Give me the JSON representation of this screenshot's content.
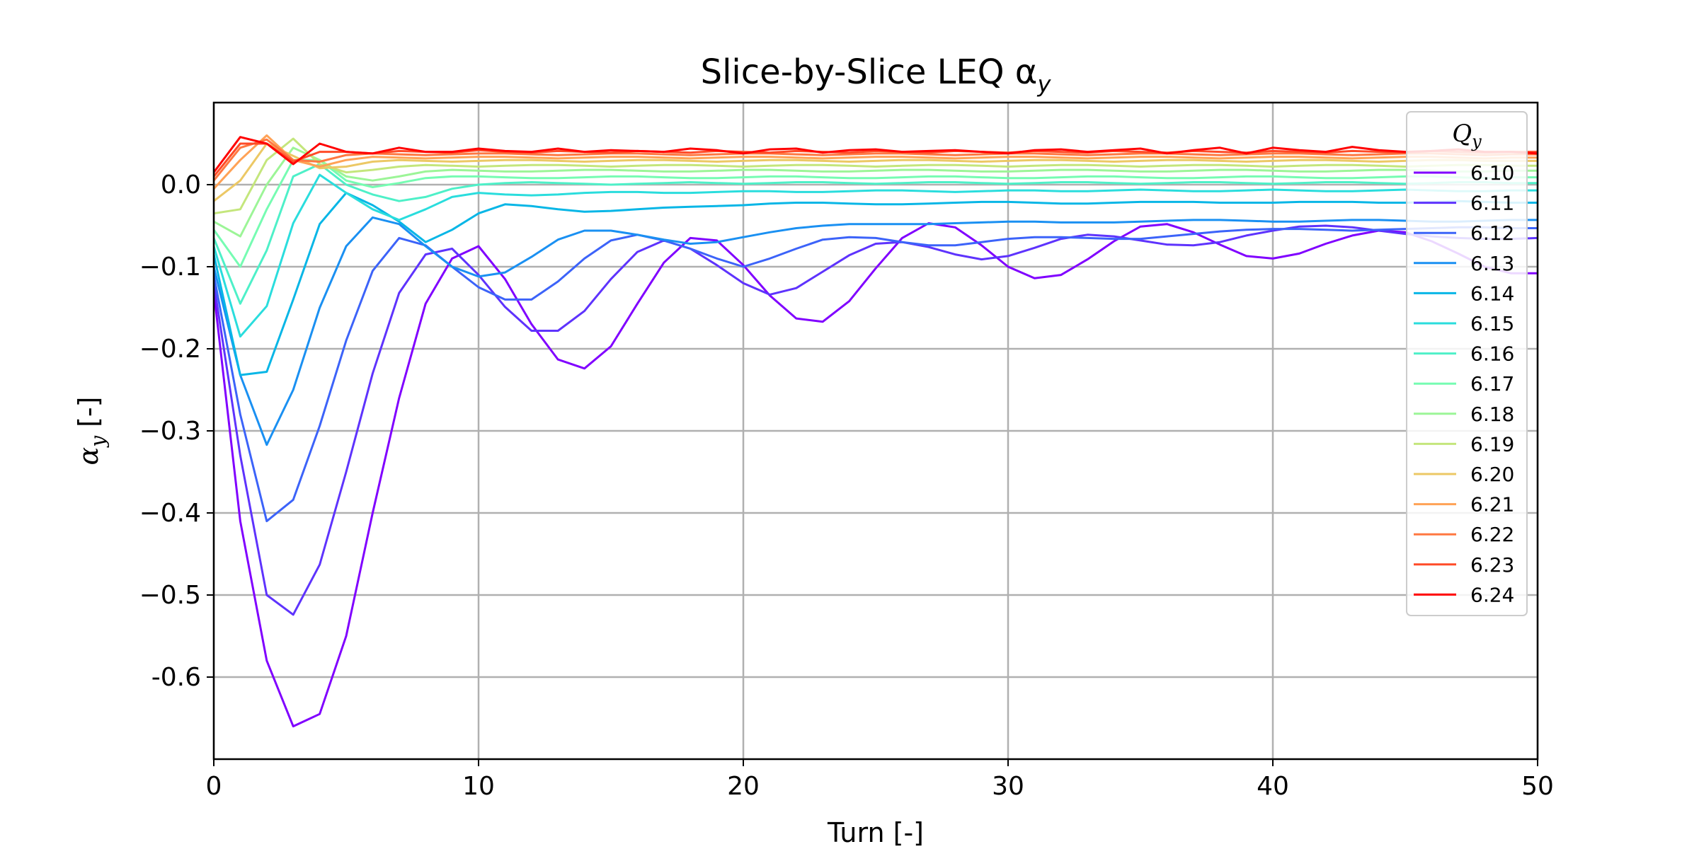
{
  "chart_data": {
    "type": "line",
    "title": "Slice-by-Slice LEQ α",
    "title_sub": "y",
    "xlabel": "Turn [-]",
    "ylabel": "α",
    "ylabel_sub": "y",
    "ylabel_suffix": " [-]",
    "xlim": [
      0,
      50
    ],
    "ylim": [
      -0.7,
      0.1
    ],
    "xticks": [
      0,
      10,
      20,
      30,
      40,
      50
    ],
    "yticks": [
      -0.6,
      -0.5,
      -0.4,
      -0.3,
      -0.2,
      -0.1,
      0.0
    ],
    "ytick_labels": [
      "-0.6",
      "−0.5",
      "−0.4",
      "−0.3",
      "−0.2",
      "−0.1",
      "0.0"
    ],
    "grid": true,
    "legend": {
      "title": "Q",
      "title_sub": "y",
      "position": "top-right"
    },
    "x": [
      0,
      1,
      2,
      3,
      4,
      5,
      6,
      7,
      8,
      9,
      10,
      11,
      12,
      13,
      14,
      15,
      16,
      17,
      18,
      19,
      20,
      21,
      22,
      23,
      24,
      25,
      26,
      27,
      28,
      29,
      30,
      31,
      32,
      33,
      34,
      35,
      36,
      37,
      38,
      39,
      40,
      41,
      42,
      43,
      44,
      45,
      46,
      47,
      48,
      49,
      50
    ],
    "series": [
      {
        "name": "6.10",
        "color": "#8000ff",
        "values": [
          -0.13,
          -0.41,
          -0.58,
          -0.66,
          -0.645,
          -0.55,
          -0.4,
          -0.26,
          -0.145,
          -0.09,
          -0.075,
          -0.115,
          -0.17,
          -0.213,
          -0.224,
          -0.197,
          -0.145,
          -0.095,
          -0.065,
          -0.068,
          -0.098,
          -0.135,
          -0.163,
          -0.167,
          -0.142,
          -0.102,
          -0.065,
          -0.047,
          -0.052,
          -0.074,
          -0.1,
          -0.114,
          -0.11,
          -0.091,
          -0.069,
          -0.051,
          -0.048,
          -0.058,
          -0.073,
          -0.087,
          -0.09,
          -0.084,
          -0.072,
          -0.062,
          -0.056,
          -0.058,
          -0.069,
          -0.084,
          -0.1,
          -0.108,
          -0.108
        ]
      },
      {
        "name": "6.11",
        "color": "#5e33fd",
        "values": [
          -0.12,
          -0.33,
          -0.5,
          -0.524,
          -0.463,
          -0.35,
          -0.23,
          -0.132,
          -0.085,
          -0.078,
          -0.11,
          -0.149,
          -0.178,
          -0.178,
          -0.154,
          -0.115,
          -0.082,
          -0.068,
          -0.078,
          -0.098,
          -0.12,
          -0.134,
          -0.126,
          -0.106,
          -0.086,
          -0.072,
          -0.07,
          -0.076,
          -0.085,
          -0.091,
          -0.087,
          -0.077,
          -0.066,
          -0.061,
          -0.063,
          -0.068,
          -0.073,
          -0.074,
          -0.07,
          -0.062,
          -0.056,
          -0.051,
          -0.05,
          -0.052,
          -0.056,
          -0.06,
          -0.063,
          -0.065,
          -0.066,
          -0.066,
          -0.065
        ]
      },
      {
        "name": "6.12",
        "color": "#3c63f9",
        "values": [
          -0.11,
          -0.28,
          -0.41,
          -0.384,
          -0.294,
          -0.19,
          -0.105,
          -0.065,
          -0.074,
          -0.1,
          -0.125,
          -0.14,
          -0.14,
          -0.118,
          -0.09,
          -0.068,
          -0.061,
          -0.068,
          -0.078,
          -0.09,
          -0.1,
          -0.09,
          -0.078,
          -0.067,
          -0.064,
          -0.065,
          -0.07,
          -0.074,
          -0.074,
          -0.07,
          -0.066,
          -0.064,
          -0.064,
          -0.065,
          -0.066,
          -0.066,
          -0.063,
          -0.06,
          -0.057,
          -0.055,
          -0.054,
          -0.054,
          -0.055,
          -0.056,
          -0.055,
          -0.054,
          -0.053,
          -0.052,
          -0.052,
          -0.053,
          -0.053
        ]
      },
      {
        "name": "6.13",
        "color": "#1a90f2",
        "values": [
          -0.1,
          -0.232,
          -0.317,
          -0.25,
          -0.15,
          -0.075,
          -0.04,
          -0.048,
          -0.075,
          -0.1,
          -0.112,
          -0.107,
          -0.088,
          -0.067,
          -0.056,
          -0.056,
          -0.061,
          -0.067,
          -0.072,
          -0.07,
          -0.064,
          -0.058,
          -0.053,
          -0.05,
          -0.048,
          -0.048,
          -0.048,
          -0.048,
          -0.047,
          -0.046,
          -0.045,
          -0.045,
          -0.046,
          -0.046,
          -0.046,
          -0.045,
          -0.044,
          -0.043,
          -0.043,
          -0.044,
          -0.045,
          -0.045,
          -0.044,
          -0.043,
          -0.043,
          -0.044,
          -0.045,
          -0.045,
          -0.044,
          -0.043,
          -0.043
        ]
      },
      {
        "name": "6.14",
        "color": "#08b6e6",
        "values": [
          -0.085,
          -0.232,
          -0.228,
          -0.14,
          -0.048,
          -0.01,
          -0.025,
          -0.045,
          -0.07,
          -0.055,
          -0.035,
          -0.024,
          -0.026,
          -0.03,
          -0.033,
          -0.032,
          -0.03,
          -0.028,
          -0.027,
          -0.026,
          -0.025,
          -0.023,
          -0.022,
          -0.022,
          -0.023,
          -0.024,
          -0.024,
          -0.023,
          -0.022,
          -0.021,
          -0.021,
          -0.022,
          -0.023,
          -0.023,
          -0.022,
          -0.021,
          -0.021,
          -0.021,
          -0.022,
          -0.022,
          -0.022,
          -0.021,
          -0.021,
          -0.021,
          -0.022,
          -0.022,
          -0.021,
          -0.02,
          -0.021,
          -0.022,
          -0.022
        ]
      },
      {
        "name": "6.15",
        "color": "#2adddd",
        "values": [
          -0.075,
          -0.185,
          -0.148,
          -0.047,
          0.012,
          -0.01,
          -0.03,
          -0.043,
          -0.03,
          -0.015,
          -0.01,
          -0.012,
          -0.013,
          -0.012,
          -0.01,
          -0.009,
          -0.009,
          -0.01,
          -0.01,
          -0.009,
          -0.008,
          -0.008,
          -0.009,
          -0.009,
          -0.008,
          -0.007,
          -0.007,
          -0.008,
          -0.009,
          -0.008,
          -0.007,
          -0.007,
          -0.008,
          -0.008,
          -0.007,
          -0.006,
          -0.007,
          -0.008,
          -0.008,
          -0.007,
          -0.006,
          -0.007,
          -0.008,
          -0.008,
          -0.007,
          -0.006,
          -0.007,
          -0.008,
          -0.008,
          -0.007,
          -0.007
        ]
      },
      {
        "name": "6.16",
        "color": "#4ef0c8",
        "values": [
          -0.065,
          -0.145,
          -0.08,
          0.01,
          0.025,
          0.0,
          -0.012,
          -0.02,
          -0.015,
          -0.005,
          0.0,
          0.002,
          0.003,
          0.002,
          0.001,
          0.0,
          0.001,
          0.002,
          0.003,
          0.002,
          0.001,
          0.002,
          0.003,
          0.003,
          0.002,
          0.001,
          0.002,
          0.003,
          0.003,
          0.002,
          0.001,
          0.002,
          0.003,
          0.003,
          0.002,
          0.001,
          0.002,
          0.003,
          0.003,
          0.002,
          0.001,
          0.002,
          0.003,
          0.003,
          0.002,
          0.001,
          0.002,
          0.003,
          0.003,
          0.002,
          0.002
        ]
      },
      {
        "name": "6.17",
        "color": "#76fcb2",
        "values": [
          -0.055,
          -0.1,
          -0.03,
          0.03,
          0.03,
          0.005,
          -0.003,
          0.002,
          0.008,
          0.01,
          0.01,
          0.009,
          0.008,
          0.008,
          0.009,
          0.01,
          0.01,
          0.009,
          0.008,
          0.008,
          0.009,
          0.01,
          0.01,
          0.009,
          0.008,
          0.008,
          0.009,
          0.01,
          0.01,
          0.009,
          0.008,
          0.008,
          0.009,
          0.01,
          0.01,
          0.009,
          0.008,
          0.008,
          0.009,
          0.01,
          0.01,
          0.009,
          0.008,
          0.008,
          0.009,
          0.01,
          0.01,
          0.009,
          0.008,
          0.009,
          0.009
        ]
      },
      {
        "name": "6.18",
        "color": "#9cf597",
        "values": [
          -0.045,
          -0.063,
          0.0,
          0.045,
          0.03,
          0.01,
          0.005,
          0.01,
          0.016,
          0.018,
          0.017,
          0.016,
          0.016,
          0.017,
          0.018,
          0.018,
          0.017,
          0.016,
          0.016,
          0.017,
          0.018,
          0.018,
          0.017,
          0.016,
          0.016,
          0.017,
          0.018,
          0.018,
          0.017,
          0.016,
          0.016,
          0.017,
          0.018,
          0.018,
          0.017,
          0.016,
          0.016,
          0.017,
          0.018,
          0.018,
          0.017,
          0.016,
          0.016,
          0.017,
          0.018,
          0.018,
          0.017,
          0.016,
          0.016,
          0.017,
          0.017
        ]
      },
      {
        "name": "6.19",
        "color": "#c4e67c",
        "values": [
          -0.035,
          -0.03,
          0.03,
          0.056,
          0.025,
          0.015,
          0.018,
          0.022,
          0.024,
          0.023,
          0.022,
          0.023,
          0.024,
          0.024,
          0.023,
          0.022,
          0.023,
          0.024,
          0.024,
          0.023,
          0.022,
          0.023,
          0.024,
          0.024,
          0.023,
          0.022,
          0.023,
          0.024,
          0.024,
          0.023,
          0.022,
          0.023,
          0.024,
          0.024,
          0.023,
          0.022,
          0.023,
          0.024,
          0.024,
          0.023,
          0.022,
          0.023,
          0.024,
          0.024,
          0.023,
          0.022,
          0.023,
          0.024,
          0.024,
          0.023,
          0.023
        ]
      },
      {
        "name": "6.20",
        "color": "#ecc865",
        "values": [
          -0.02,
          0.005,
          0.05,
          0.035,
          0.02,
          0.022,
          0.028,
          0.03,
          0.029,
          0.028,
          0.029,
          0.03,
          0.03,
          0.029,
          0.028,
          0.029,
          0.03,
          0.03,
          0.029,
          0.028,
          0.029,
          0.03,
          0.03,
          0.029,
          0.028,
          0.029,
          0.03,
          0.03,
          0.029,
          0.028,
          0.029,
          0.03,
          0.03,
          0.029,
          0.028,
          0.029,
          0.03,
          0.03,
          0.029,
          0.028,
          0.029,
          0.03,
          0.03,
          0.029,
          0.028,
          0.029,
          0.03,
          0.03,
          0.029,
          0.029,
          0.029
        ]
      },
      {
        "name": "6.21",
        "color": "#ffa256",
        "values": [
          -0.005,
          0.03,
          0.06,
          0.03,
          0.022,
          0.03,
          0.034,
          0.033,
          0.032,
          0.033,
          0.034,
          0.034,
          0.033,
          0.032,
          0.033,
          0.034,
          0.034,
          0.033,
          0.032,
          0.033,
          0.034,
          0.034,
          0.033,
          0.032,
          0.033,
          0.034,
          0.034,
          0.033,
          0.032,
          0.033,
          0.034,
          0.034,
          0.033,
          0.032,
          0.033,
          0.034,
          0.034,
          0.033,
          0.032,
          0.033,
          0.034,
          0.034,
          0.033,
          0.032,
          0.033,
          0.034,
          0.034,
          0.033,
          0.032,
          0.033,
          0.033
        ]
      },
      {
        "name": "6.22",
        "color": "#ff7841",
        "values": [
          0.005,
          0.045,
          0.055,
          0.03,
          0.028,
          0.036,
          0.038,
          0.037,
          0.036,
          0.037,
          0.038,
          0.038,
          0.037,
          0.036,
          0.037,
          0.038,
          0.038,
          0.037,
          0.036,
          0.037,
          0.038,
          0.038,
          0.037,
          0.036,
          0.037,
          0.038,
          0.038,
          0.037,
          0.036,
          0.037,
          0.038,
          0.038,
          0.037,
          0.036,
          0.037,
          0.038,
          0.038,
          0.037,
          0.036,
          0.037,
          0.038,
          0.038,
          0.037,
          0.036,
          0.037,
          0.038,
          0.038,
          0.037,
          0.036,
          0.037,
          0.037
        ]
      },
      {
        "name": "6.23",
        "color": "#ff4b28",
        "values": [
          0.01,
          0.05,
          0.05,
          0.028,
          0.04,
          0.04,
          0.038,
          0.041,
          0.04,
          0.039,
          0.042,
          0.04,
          0.039,
          0.041,
          0.04,
          0.039,
          0.041,
          0.04,
          0.039,
          0.041,
          0.04,
          0.039,
          0.041,
          0.04,
          0.039,
          0.041,
          0.04,
          0.039,
          0.041,
          0.04,
          0.039,
          0.041,
          0.04,
          0.039,
          0.041,
          0.04,
          0.039,
          0.041,
          0.04,
          0.039,
          0.041,
          0.04,
          0.039,
          0.041,
          0.04,
          0.039,
          0.041,
          0.04,
          0.039,
          0.04,
          0.04
        ]
      },
      {
        "name": "6.24",
        "color": "#ff0000",
        "values": [
          0.015,
          0.058,
          0.05,
          0.025,
          0.05,
          0.04,
          0.038,
          0.045,
          0.04,
          0.04,
          0.044,
          0.041,
          0.04,
          0.044,
          0.04,
          0.042,
          0.041,
          0.04,
          0.044,
          0.042,
          0.038,
          0.043,
          0.044,
          0.039,
          0.042,
          0.043,
          0.04,
          0.041,
          0.042,
          0.04,
          0.038,
          0.042,
          0.043,
          0.04,
          0.042,
          0.044,
          0.038,
          0.042,
          0.045,
          0.038,
          0.045,
          0.042,
          0.04,
          0.046,
          0.042,
          0.04,
          0.041,
          0.043,
          0.04,
          0.04,
          0.038
        ]
      }
    ]
  }
}
